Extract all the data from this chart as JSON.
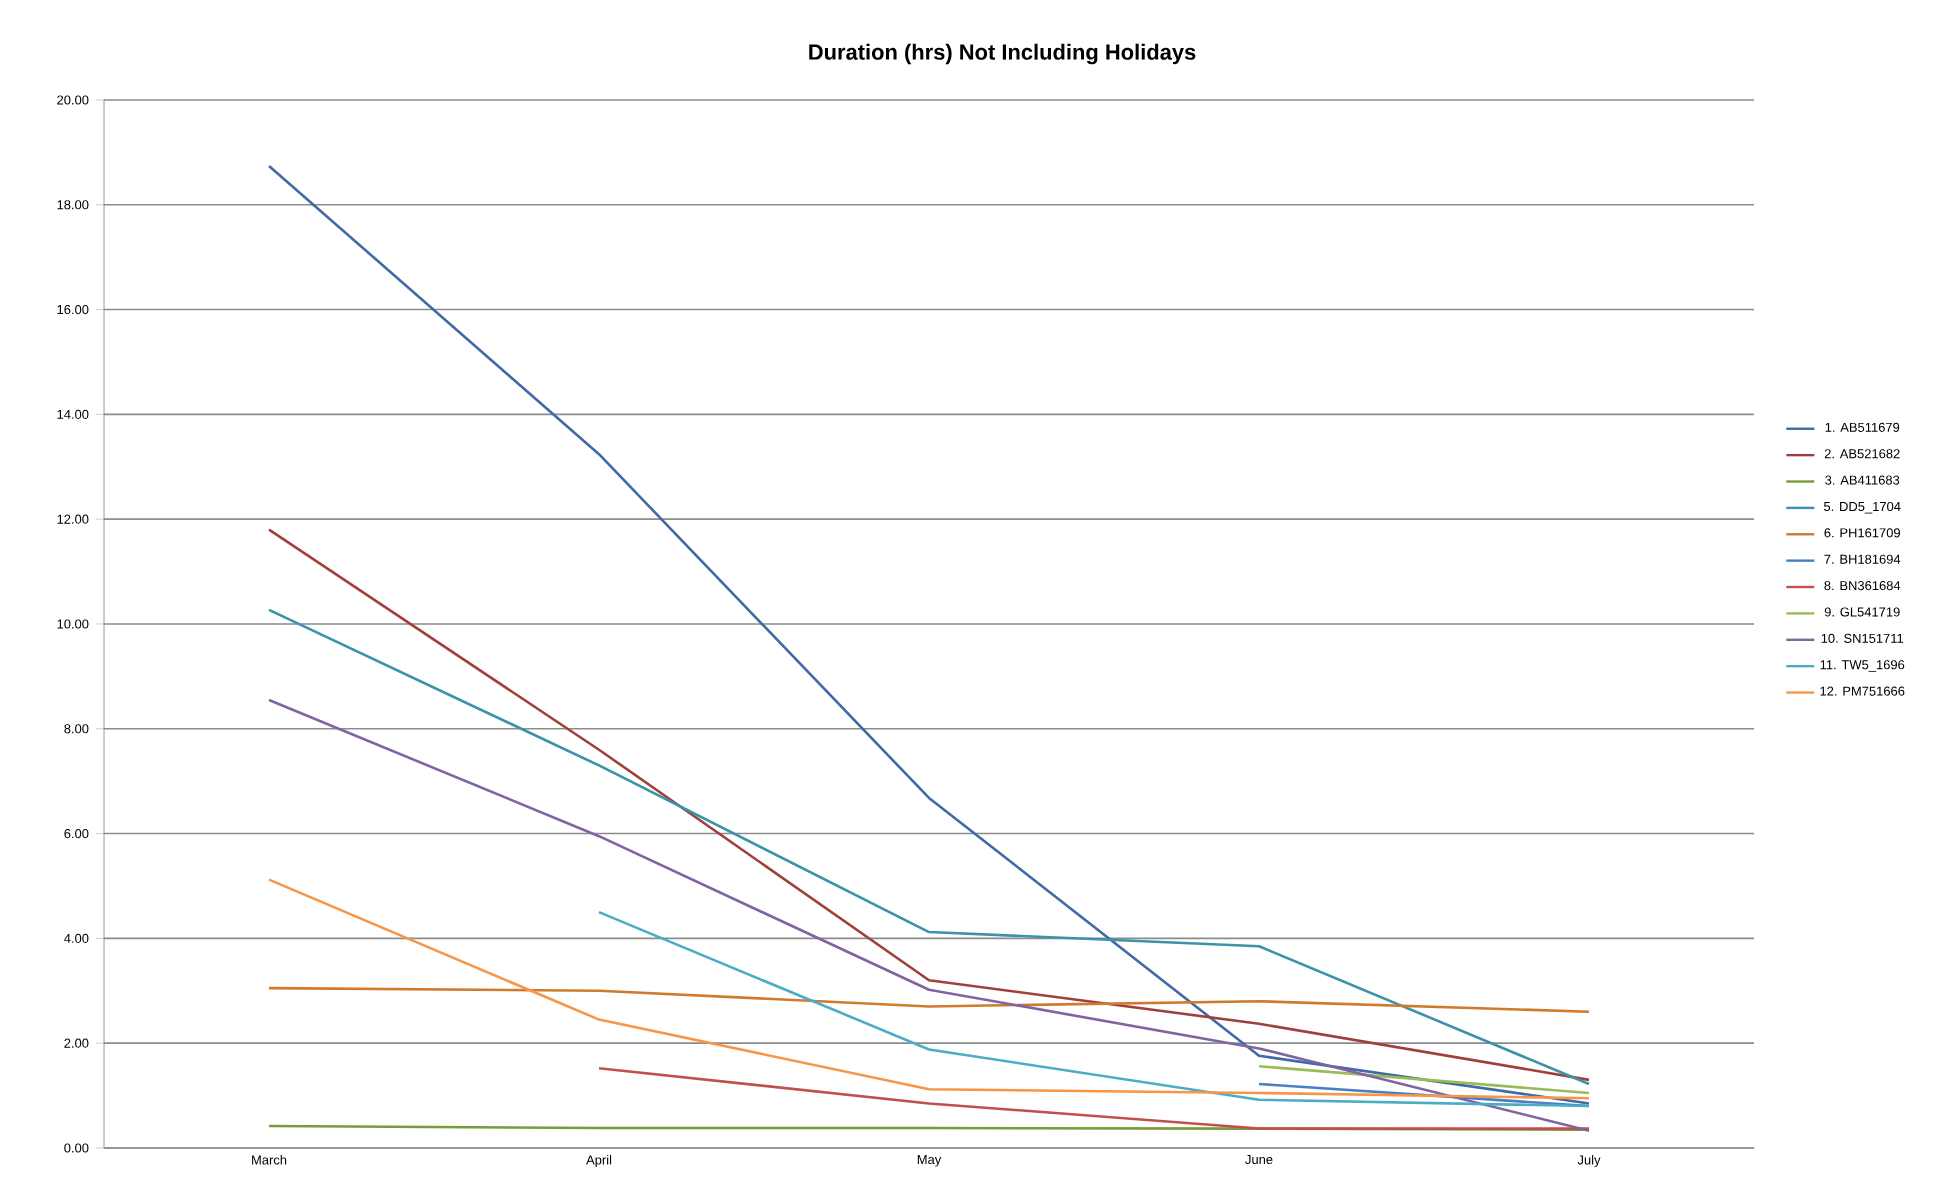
{
  "chart_data": {
    "type": "line",
    "title": "Duration (hrs) Not Including Holidays",
    "categories": [
      "March",
      "April",
      "May",
      "June",
      "July"
    ],
    "ylim": [
      0,
      20
    ],
    "yticks": [
      {
        "value": 0,
        "label": "0.00"
      },
      {
        "value": 2,
        "label": "2.00"
      },
      {
        "value": 4,
        "label": "4.00"
      },
      {
        "value": 6,
        "label": "6.00"
      },
      {
        "value": 8,
        "label": "8.00"
      },
      {
        "value": 10,
        "label": "10.00"
      },
      {
        "value": 12,
        "label": "12.00"
      },
      {
        "value": 14,
        "label": "14.00"
      },
      {
        "value": 16,
        "label": "16.00"
      },
      {
        "value": 18,
        "label": "18.00"
      },
      {
        "value": 20,
        "label": "20.00"
      }
    ],
    "grid": "y",
    "legend": "right",
    "line_style": "solid",
    "series": [
      {
        "name": "1. AB511679",
        "color": "#3f6aa6",
        "values": [
          18.74,
          13.24,
          6.68,
          1.76,
          0.85
        ]
      },
      {
        "name": "2. AB521682",
        "color": "#a0403c",
        "values": [
          11.8,
          7.6,
          3.2,
          2.37,
          1.3
        ]
      },
      {
        "name": "3. AB411683",
        "color": "#7a9a3b",
        "values": [
          0.42,
          0.38,
          0.38,
          0.37,
          0.35
        ]
      },
      {
        "name": "5. DD5_1704",
        "color": "#3a93a8",
        "values": [
          10.27,
          7.3,
          4.12,
          3.85,
          1.22
        ]
      },
      {
        "name": "6. PH161709",
        "color": "#d07a2e",
        "values": [
          3.05,
          3.0,
          2.7,
          2.8,
          2.6
        ]
      },
      {
        "name": "7. BH181694",
        "color": "#4a7fc8",
        "values": [
          null,
          null,
          null,
          1.22,
          0.8
        ]
      },
      {
        "name": "8. BN361684",
        "color": "#c0504d",
        "values": [
          null,
          1.52,
          0.85,
          0.37,
          0.37
        ]
      },
      {
        "name": "9. GL541719",
        "color": "#9bbb59",
        "values": [
          null,
          null,
          null,
          1.56,
          1.05
        ]
      },
      {
        "name": "10. SN151711",
        "color": "#8064a2",
        "values": [
          8.55,
          5.95,
          3.02,
          1.9,
          0.33
        ]
      },
      {
        "name": "11. TW5_1696",
        "color": "#4bacc6",
        "values": [
          null,
          4.5,
          1.88,
          0.92,
          0.8
        ]
      },
      {
        "name": "12. PM751666",
        "color": "#f79646",
        "values": [
          5.12,
          2.45,
          1.12,
          1.05,
          0.95
        ]
      }
    ]
  }
}
